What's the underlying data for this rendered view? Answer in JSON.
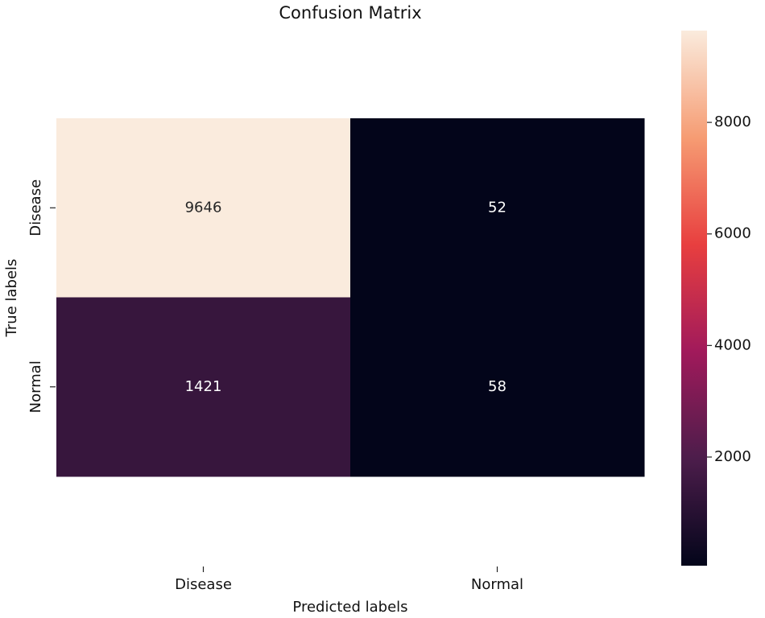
{
  "chart_data": {
    "type": "heatmap",
    "title": "Confusion Matrix",
    "x_label": "Predicted labels",
    "y_label": "True labels",
    "x_categories": [
      "Disease",
      "Normal"
    ],
    "y_categories": [
      "Disease",
      "Normal"
    ],
    "values": [
      [
        9646,
        52
      ],
      [
        1421,
        58
      ]
    ],
    "colormap": [
      "#03051a",
      "#4c1d4b",
      "#a11a5b",
      "#e83f3f",
      "#f69c73",
      "#faebdd"
    ],
    "colorbar_lim": [
      52,
      9646
    ],
    "colorbar_ticks": [
      2000,
      4000,
      6000,
      8000
    ]
  }
}
